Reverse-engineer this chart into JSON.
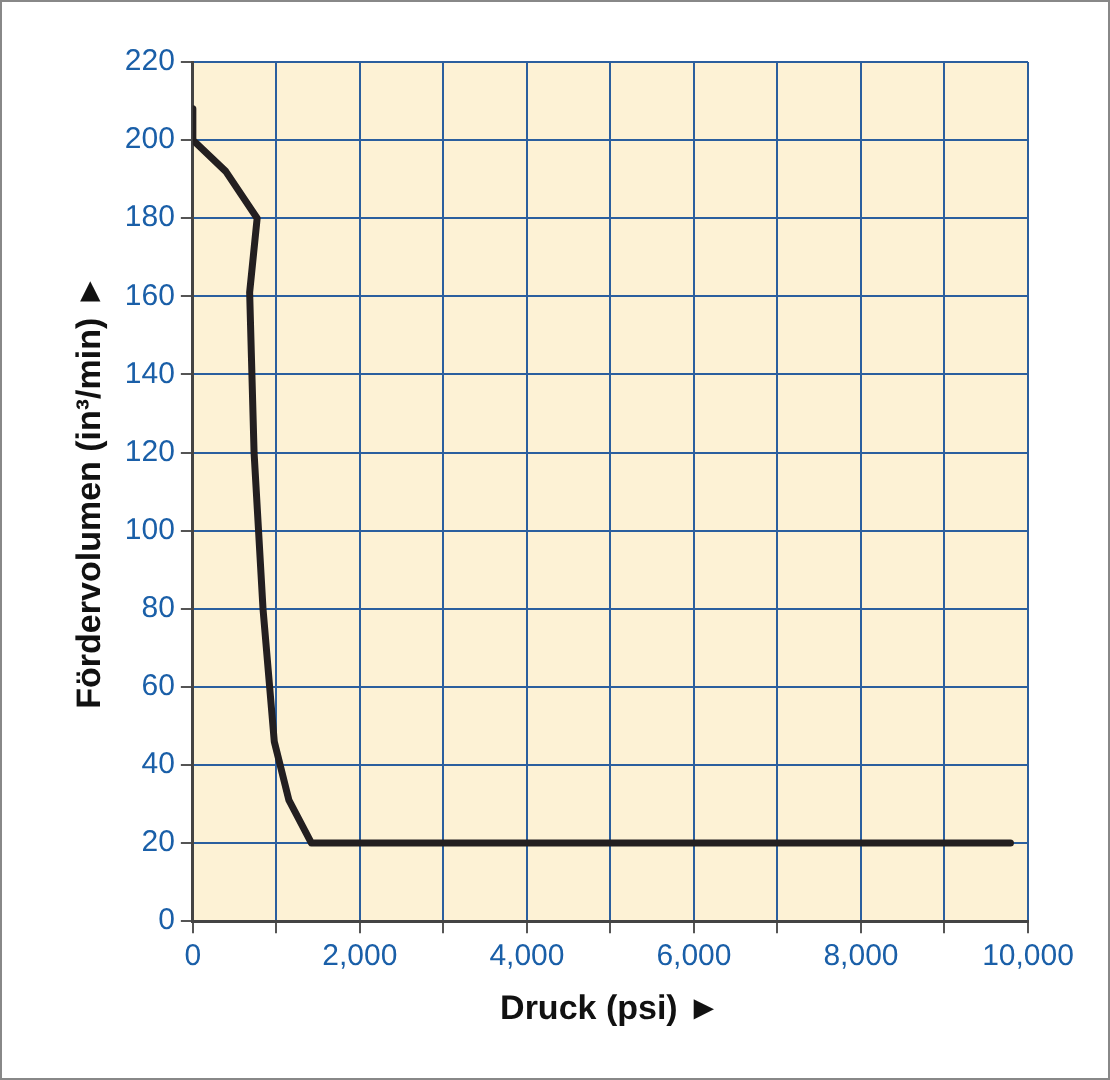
{
  "chart_data": {
    "type": "line",
    "xlabel": "Druck (psi) ►",
    "ylabel": "Fördervolumen (in³/min) ►",
    "x": [
      0,
      0,
      394,
      770,
      680,
      733,
      840,
      975,
      1150,
      1420,
      9790
    ],
    "series": [
      {
        "color": "#231f20",
        "values": [
          208,
          200,
          192,
          180,
          161,
          120,
          80,
          46,
          31,
          20,
          20
        ]
      }
    ],
    "xlim": [
      0,
      10000
    ],
    "xticks": [
      0,
      {
        "value": 1000,
        "label": null
      },
      {
        "value": 2000,
        "label": "2,000"
      },
      {
        "value": 3000,
        "label": null
      },
      {
        "value": 4000,
        "label": "4,000"
      },
      {
        "value": 5000,
        "label": null
      },
      {
        "value": 6000,
        "label": "6,000"
      },
      {
        "value": 7000,
        "label": null
      },
      {
        "value": 8000,
        "label": "8,000"
      },
      {
        "value": 9000,
        "label": null
      },
      {
        "value": 10000,
        "label": "10,000"
      }
    ],
    "ylim": [
      0,
      220
    ],
    "yticks": [
      0,
      20,
      40,
      60,
      80,
      100,
      120,
      140,
      160,
      180,
      200,
      220
    ],
    "grid": true,
    "legend": false,
    "marker": "none",
    "line_style": "solid"
  }
}
